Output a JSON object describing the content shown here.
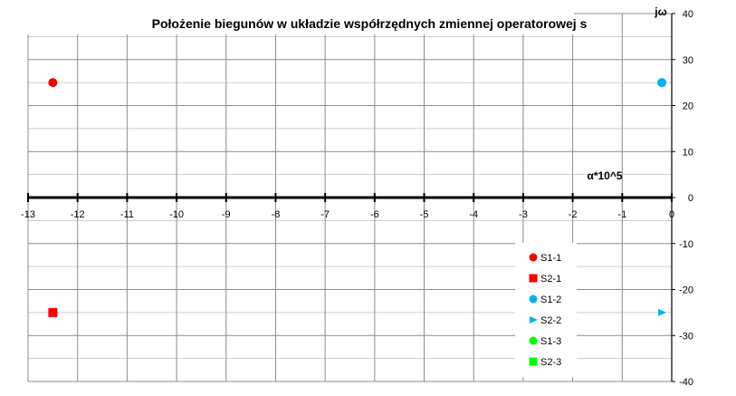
{
  "chart_data": {
    "type": "scatter",
    "title": "Położenie biegunów w  układzie współrzędnych zmiennej operatorowej s",
    "xlabel": "α*10^5",
    "ylabel": "jω",
    "xlim": [
      -13,
      0
    ],
    "ylim": [
      -40,
      40
    ],
    "x_ticks": [
      -13,
      -12,
      -11,
      -10,
      -9,
      -8,
      -7,
      -6,
      -5,
      -4,
      -3,
      -2,
      -1,
      0
    ],
    "y_ticks": [
      -40,
      -30,
      -20,
      -10,
      0,
      10,
      20,
      30,
      40
    ],
    "grid": true,
    "legend_position": "bottom-right",
    "series": [
      {
        "name": "S1-1",
        "marker": "circle",
        "color": "#ff0000",
        "points": [
          [
            -12.5,
            25
          ]
        ]
      },
      {
        "name": "S2-1",
        "marker": "square",
        "color": "#ff0000",
        "points": [
          [
            -12.5,
            -25
          ]
        ]
      },
      {
        "name": "S1-2",
        "marker": "circle",
        "color": "#00b0f0",
        "points": [
          [
            -0.2,
            25
          ]
        ]
      },
      {
        "name": "S2-2",
        "marker": "triangle",
        "color": "#00b0f0",
        "points": [
          [
            -0.2,
            -25
          ]
        ]
      },
      {
        "name": "S1-3",
        "marker": "circle",
        "color": "#00ff00",
        "points": []
      },
      {
        "name": "S2-3",
        "marker": "square",
        "color": "#00ff00",
        "points": []
      }
    ]
  }
}
